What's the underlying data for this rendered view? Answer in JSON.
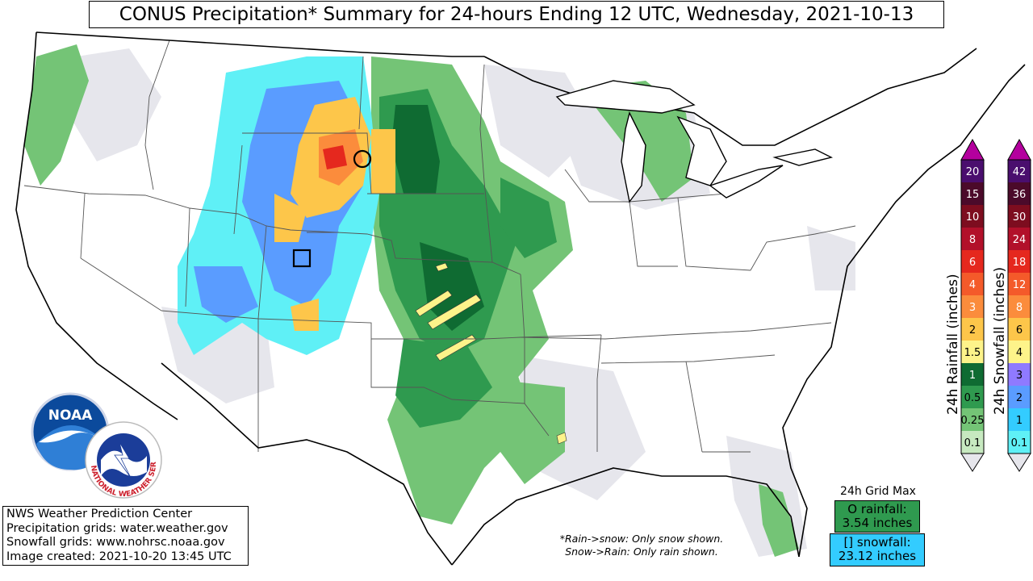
{
  "title": "CONUS Precipitation* Summary for 24-hours Ending 12 UTC, Wednesday, 2021-10-13",
  "credits": {
    "line1": "NWS Weather Prediction Center",
    "line2": "Precipitation grids: water.weather.gov",
    "line3": "Snowfall grids: www.nohrsc.noaa.gov",
    "line4": "Image created: 2021-10-20 13:45 UTC"
  },
  "footnote": {
    "line1": "*Rain->snow: Only snow shown.",
    "line2": "Snow->Rain: Only rain shown."
  },
  "grid_max": {
    "title": "24h Grid Max",
    "rain_label": "O rainfall:",
    "rain_value": "3.54 inches",
    "snow_label": "[] snowfall:",
    "snow_value": "23.12 inches",
    "rain_color": "#2f9a4f",
    "snow_color": "#33ccff"
  },
  "logos": {
    "noaa_text": "NOAA",
    "nws_text": "NATIONAL WEATHER SERVICE"
  },
  "rain_scale": {
    "title": "24h Rainfall (inches)",
    "levels": [
      {
        "label": "20",
        "color": "#4a0e6e"
      },
      {
        "label": "15",
        "color": "#4b0a2a"
      },
      {
        "label": "10",
        "color": "#7d0d1f"
      },
      {
        "label": "8",
        "color": "#b2102a"
      },
      {
        "label": "6",
        "color": "#e5281e"
      },
      {
        "label": "4",
        "color": "#f45a2a"
      },
      {
        "label": "3",
        "color": "#fb8c3c"
      },
      {
        "label": "2",
        "color": "#fdc64a"
      },
      {
        "label": "1.5",
        "color": "#fdf38a"
      },
      {
        "label": "1",
        "color": "#0f6b32"
      },
      {
        "label": "0.5",
        "color": "#2f9a4f"
      },
      {
        "label": "0.25",
        "color": "#74c476"
      },
      {
        "label": "0.1",
        "color": "#c7e9c0"
      }
    ],
    "top_color": "#b4009e",
    "bottom_color": "#e6e6ec"
  },
  "snow_scale": {
    "title": "24h Snowfall (inches)",
    "levels": [
      {
        "label": "42",
        "color": "#4a0e6e"
      },
      {
        "label": "36",
        "color": "#4b0a2a"
      },
      {
        "label": "30",
        "color": "#7d0d1f"
      },
      {
        "label": "24",
        "color": "#b2102a"
      },
      {
        "label": "18",
        "color": "#e5281e"
      },
      {
        "label": "12",
        "color": "#f45a2a"
      },
      {
        "label": "8",
        "color": "#fb8c3c"
      },
      {
        "label": "6",
        "color": "#fdc64a"
      },
      {
        "label": "4",
        "color": "#fdf38a"
      },
      {
        "label": "3",
        "color": "#8f7aff"
      },
      {
        "label": "2",
        "color": "#5a9cff"
      },
      {
        "label": "1",
        "color": "#33ccff"
      },
      {
        "label": "0.1",
        "color": "#5ff0f6"
      }
    ],
    "top_color": "#b4009e",
    "bottom_color": "#e6e6ec"
  },
  "markers": {
    "rain_max_symbol": "circle",
    "snow_max_symbol": "square"
  }
}
